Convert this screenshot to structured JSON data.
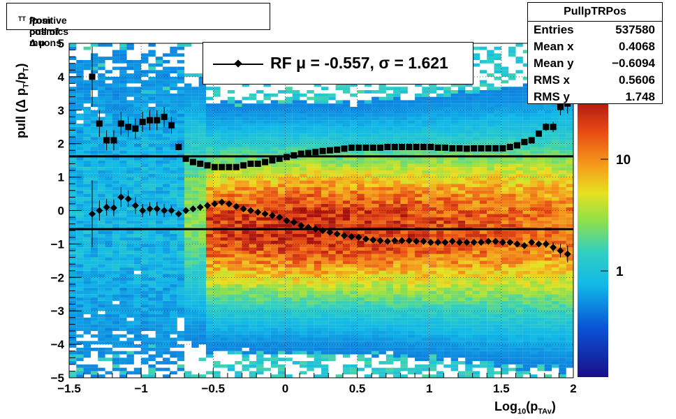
{
  "title": {
    "text_pre": "Positive pull of Δ p",
    "sub1": "T",
    "mid": "/p",
    "sub2": "T",
    "text_post": " from cosmics muons"
  },
  "stats": {
    "name": "PullpTRPos",
    "rows": [
      {
        "label": "Entries",
        "value": "537580"
      },
      {
        "label": "Mean x",
        "value": "0.4068"
      },
      {
        "label": "Mean y",
        "value": "−0.6094"
      },
      {
        "label": "RMS x",
        "value": "0.5606"
      },
      {
        "label": "RMS y",
        "value": "1.748"
      }
    ]
  },
  "legend": {
    "text": "RF μ = -0.557, σ =   1.621"
  },
  "axes": {
    "ylabel_pre": "pull (Δ p",
    "ylabel_sub1": "T",
    "ylabel_mid": "/p",
    "ylabel_sub2": "T",
    "ylabel_post": ")",
    "xlabel_pre": "Log",
    "xlabel_sub1": "10",
    "xlabel_mid": "(p",
    "xlabel_sub2": "TAv",
    "xlabel_post": ")"
  },
  "chart_data": {
    "type": "heatmap",
    "xlim": [
      -1.5,
      2
    ],
    "ylim": [
      -5,
      5
    ],
    "x_ticks": [
      "−1.5",
      "−1",
      "−0.5",
      "0",
      "0.5",
      "1",
      "1.5",
      "2"
    ],
    "y_ticks": [
      "−5",
      "−4",
      "−3",
      "−2",
      "−1",
      "0",
      "1",
      "2",
      "3",
      "4",
      "5"
    ],
    "z_scale": "log",
    "z_ticks": [
      "1",
      "10"
    ],
    "grid": true,
    "mean_line_y": -0.557,
    "sigma_line_y": 1.621,
    "series": [
      {
        "marker": "square",
        "x": [
          -1.34,
          -1.29,
          -1.24,
          -1.19,
          -1.14,
          -1.09,
          -1.04,
          -0.99,
          -0.94,
          -0.89,
          -0.84,
          -0.79,
          -0.74,
          -0.69,
          -0.64,
          -0.59,
          -0.54,
          -0.49,
          -0.44,
          -0.39,
          -0.34,
          -0.29,
          -0.24,
          -0.19,
          -0.14,
          -0.09,
          -0.04,
          0.01,
          0.06,
          0.11,
          0.16,
          0.21,
          0.26,
          0.31,
          0.36,
          0.41,
          0.46,
          0.51,
          0.56,
          0.61,
          0.66,
          0.71,
          0.76,
          0.81,
          0.86,
          0.91,
          0.96,
          1.01,
          1.06,
          1.11,
          1.16,
          1.21,
          1.26,
          1.31,
          1.36,
          1.41,
          1.46,
          1.51,
          1.56,
          1.61,
          1.66,
          1.71,
          1.76,
          1.81,
          1.86,
          1.91,
          1.96
        ],
        "y": [
          4.0,
          2.6,
          2.1,
          2.1,
          2.6,
          2.5,
          2.45,
          2.65,
          2.7,
          2.7,
          2.8,
          2.55,
          1.9,
          1.55,
          1.45,
          1.4,
          1.35,
          1.3,
          1.3,
          1.3,
          1.3,
          1.35,
          1.4,
          1.4,
          1.45,
          1.5,
          1.55,
          1.6,
          1.65,
          1.7,
          1.72,
          1.75,
          1.78,
          1.8,
          1.82,
          1.85,
          1.88,
          1.88,
          1.88,
          1.88,
          1.88,
          1.9,
          1.9,
          1.9,
          1.9,
          1.9,
          1.9,
          1.9,
          1.88,
          1.88,
          1.86,
          1.86,
          1.85,
          1.86,
          1.86,
          1.86,
          1.86,
          1.86,
          1.9,
          1.95,
          2.05,
          2.1,
          2.3,
          2.5,
          2.5,
          3.1,
          3.2
        ],
        "yerr": [
          0.9,
          0.4,
          0.3,
          0.3,
          0.35,
          0.3,
          0.3,
          0.3,
          0.3,
          0.3,
          0.3,
          0.25,
          0.1,
          0.05,
          0.03,
          0.02,
          0.02,
          0.02,
          0.02,
          0.02,
          0.02,
          0.02,
          0.02,
          0.02,
          0.02,
          0.02,
          0.02,
          0.02,
          0.02,
          0.02,
          0.02,
          0.02,
          0.02,
          0.02,
          0.02,
          0.02,
          0.02,
          0.02,
          0.02,
          0.02,
          0.02,
          0.02,
          0.02,
          0.02,
          0.02,
          0.02,
          0.02,
          0.02,
          0.02,
          0.02,
          0.02,
          0.02,
          0.02,
          0.02,
          0.02,
          0.02,
          0.02,
          0.02,
          0.03,
          0.04,
          0.05,
          0.06,
          0.08,
          0.12,
          0.15,
          0.25,
          0.3
        ]
      },
      {
        "marker": "diamond",
        "x": [
          -1.34,
          -1.29,
          -1.24,
          -1.19,
          -1.14,
          -1.09,
          -1.04,
          -0.99,
          -0.94,
          -0.89,
          -0.84,
          -0.79,
          -0.74,
          -0.69,
          -0.64,
          -0.59,
          -0.54,
          -0.49,
          -0.44,
          -0.39,
          -0.34,
          -0.29,
          -0.24,
          -0.19,
          -0.14,
          -0.09,
          -0.04,
          0.01,
          0.06,
          0.11,
          0.16,
          0.21,
          0.26,
          0.31,
          0.36,
          0.41,
          0.46,
          0.51,
          0.56,
          0.61,
          0.66,
          0.71,
          0.76,
          0.81,
          0.86,
          0.91,
          0.96,
          1.01,
          1.06,
          1.11,
          1.16,
          1.21,
          1.26,
          1.31,
          1.36,
          1.41,
          1.46,
          1.51,
          1.56,
          1.61,
          1.66,
          1.71,
          1.76,
          1.81,
          1.86,
          1.91,
          1.96
        ],
        "y": [
          -0.1,
          0.0,
          0.1,
          0.08,
          0.4,
          0.35,
          0.15,
          0.0,
          0.05,
          0.05,
          0.0,
          0.0,
          -0.1,
          0.0,
          0.05,
          0.1,
          0.15,
          0.2,
          0.25,
          0.2,
          0.12,
          0.05,
          0.0,
          -0.05,
          -0.1,
          -0.15,
          -0.2,
          -0.3,
          -0.35,
          -0.45,
          -0.5,
          -0.55,
          -0.6,
          -0.65,
          -0.7,
          -0.75,
          -0.78,
          -0.8,
          -0.85,
          -0.88,
          -0.9,
          -0.92,
          -0.9,
          -0.9,
          -0.9,
          -0.92,
          -0.92,
          -0.95,
          -0.95,
          -0.95,
          -0.92,
          -0.95,
          -0.95,
          -0.95,
          -0.95,
          -0.92,
          -0.92,
          -0.95,
          -0.95,
          -1.0,
          -1.05,
          -0.95,
          -1.0,
          -1.0,
          -1.1,
          -1.2,
          -1.3
        ],
        "yerr": [
          1.0,
          0.3,
          0.25,
          0.25,
          0.3,
          0.25,
          0.25,
          0.2,
          0.2,
          0.2,
          0.2,
          0.15,
          0.08,
          0.05,
          0.03,
          0.02,
          0.02,
          0.02,
          0.02,
          0.02,
          0.02,
          0.02,
          0.02,
          0.02,
          0.02,
          0.02,
          0.02,
          0.02,
          0.02,
          0.02,
          0.02,
          0.02,
          0.02,
          0.02,
          0.02,
          0.02,
          0.02,
          0.02,
          0.02,
          0.02,
          0.02,
          0.02,
          0.02,
          0.02,
          0.02,
          0.02,
          0.02,
          0.02,
          0.02,
          0.02,
          0.02,
          0.02,
          0.02,
          0.02,
          0.02,
          0.02,
          0.02,
          0.02,
          0.03,
          0.04,
          0.05,
          0.06,
          0.08,
          0.12,
          0.15,
          0.2,
          0.25
        ]
      }
    ]
  }
}
